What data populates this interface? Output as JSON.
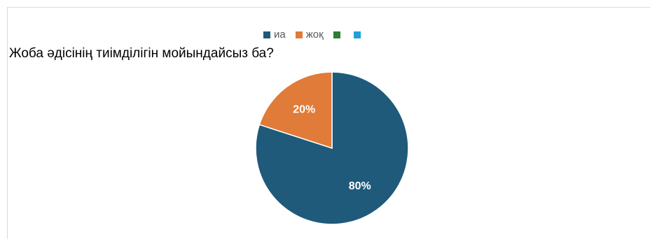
{
  "chart_data": {
    "type": "pie",
    "title": "Жоба әдісінің тиімділігін мойындайсыз ба?",
    "legend_position": "top",
    "legend": [
      {
        "name": "иа",
        "color": "#1f5a7a"
      },
      {
        "name": "жоқ",
        "color": "#e07b39"
      },
      {
        "name": "",
        "color": "#2e7d32"
      },
      {
        "name": "",
        "color": "#1fa0d8"
      }
    ],
    "slices": [
      {
        "name": "иа",
        "value": 80,
        "label": "80%",
        "color": "#1f5a7a"
      },
      {
        "name": "жоқ",
        "value": 20,
        "label": "20%",
        "color": "#e07b39"
      }
    ]
  }
}
